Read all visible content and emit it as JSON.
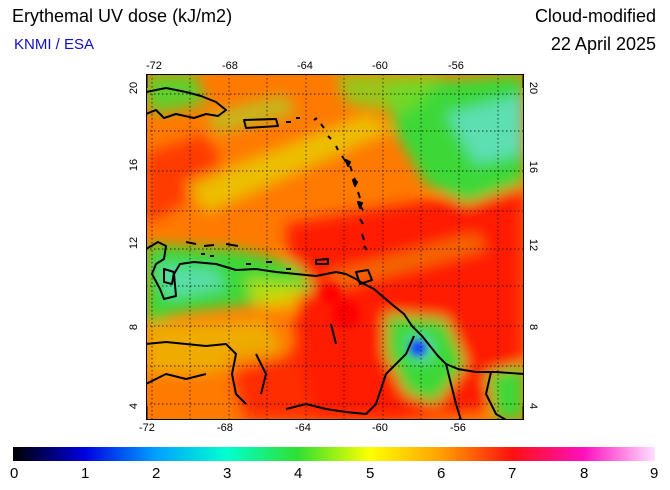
{
  "header": {
    "title": "Erythemal UV dose (kJ/m2)",
    "credit": "KNMI / ESA",
    "mode": "Cloud-modified",
    "date": "22 April 2025"
  },
  "map": {
    "lon_ticks": [
      "-72",
      "-68",
      "-64",
      "-60",
      "-56"
    ],
    "lat_ticks": [
      "20",
      "16",
      "12",
      "8",
      "4"
    ],
    "lon_range": [
      -72.5,
      -53
    ],
    "lat_range": [
      3.5,
      20.5
    ],
    "grid": "dotted 2-degree lines",
    "colors": {
      "low_uv_green": "#3cd838",
      "mid_uv_yellow": "#e8d800",
      "orange": "#ff7a00",
      "red": "#ff1a00",
      "cyan_cloud": "#60e0c0",
      "blue_min": "#1040ff",
      "coast": "#000000"
    }
  },
  "colorbar": {
    "labels": [
      "0",
      "1",
      "2",
      "3",
      "4",
      "5",
      "6",
      "7",
      "8",
      "9"
    ],
    "range": [
      0,
      9
    ],
    "colors": [
      "#000000",
      "#0000e0",
      "#00a0ff",
      "#00ffd0",
      "#30e030",
      "#ffff00",
      "#ffa000",
      "#ff1010",
      "#ff10c0",
      "#ffe0ff"
    ]
  }
}
